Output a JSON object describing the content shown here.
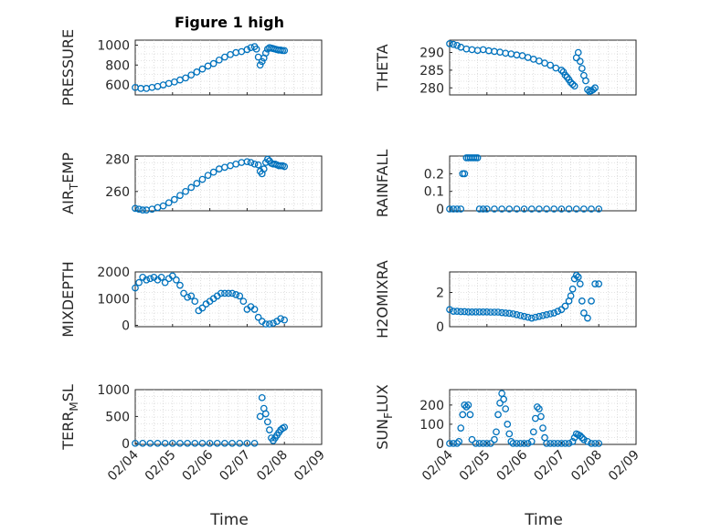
{
  "figure": {
    "title": "Figure 1 high"
  },
  "time_axis": {
    "xlabel": "Time",
    "tick_labels": [
      "02/04",
      "02/05",
      "02/06",
      "02/07",
      "02/08",
      "02/09"
    ]
  },
  "colors": {
    "marker": "#0072bd",
    "axes": "#262626",
    "grid": "#c8c8c8"
  },
  "chart_data": [
    {
      "type": "scatter",
      "ylabel": "PRESSURE",
      "ylabel_sub": "",
      "ylabel_after": "",
      "ylim": [
        500,
        1050
      ],
      "yticks": [
        600,
        800,
        1000
      ],
      "xlim": [
        0,
        5
      ],
      "grid": true,
      "series": [
        {
          "x": [
            0.0,
            0.15,
            0.3,
            0.45,
            0.6,
            0.75,
            0.9,
            1.05,
            1.2,
            1.35,
            1.5,
            1.65,
            1.8,
            1.95,
            2.1,
            2.25,
            2.4,
            2.55,
            2.7,
            2.85,
            3.0,
            3.1,
            3.2,
            3.25,
            3.3,
            3.35,
            3.4,
            3.45,
            3.5,
            3.55,
            3.6,
            3.65,
            3.7,
            3.75,
            3.8,
            3.85,
            3.9,
            3.95,
            4.0
          ],
          "y": [
            575,
            565,
            565,
            575,
            585,
            600,
            615,
            630,
            650,
            670,
            700,
            730,
            760,
            790,
            815,
            850,
            880,
            905,
            925,
            935,
            955,
            975,
            985,
            960,
            880,
            800,
            835,
            870,
            920,
            960,
            975,
            970,
            965,
            960,
            955,
            950,
            950,
            945,
            945
          ]
        }
      ]
    },
    {
      "type": "scatter",
      "ylabel": "THETA",
      "ylabel_sub": "",
      "ylabel_after": "",
      "ylim": [
        278,
        293.5
      ],
      "yticks": [
        280,
        285,
        290
      ],
      "xlim": [
        0,
        5
      ],
      "grid": true,
      "series": [
        {
          "x": [
            0.0,
            0.1,
            0.2,
            0.3,
            0.45,
            0.6,
            0.75,
            0.9,
            1.05,
            1.2,
            1.35,
            1.5,
            1.65,
            1.8,
            1.95,
            2.1,
            2.25,
            2.4,
            2.55,
            2.7,
            2.85,
            3.0,
            3.05,
            3.1,
            3.15,
            3.2,
            3.25,
            3.3,
            3.35,
            3.4,
            3.45,
            3.5,
            3.55,
            3.6,
            3.65,
            3.7,
            3.75,
            3.8,
            3.85,
            3.9
          ],
          "y": [
            292.5,
            292.3,
            292,
            291.5,
            291,
            290.8,
            290.6,
            290.8,
            290.5,
            290.3,
            290.1,
            289.8,
            289.6,
            289.3,
            289.1,
            288.6,
            288.1,
            287.6,
            287,
            286.4,
            285.6,
            285,
            284.5,
            283.6,
            283,
            282.3,
            281.5,
            281,
            280.5,
            288.5,
            290,
            287.5,
            285.5,
            283.5,
            282,
            279.5,
            279,
            279.2,
            279.5,
            280
          ]
        }
      ]
    },
    {
      "type": "scatter",
      "ylabel": "AIR",
      "ylabel_sub": "T",
      "ylabel_after": "EMP",
      "ylim": [
        248,
        282
      ],
      "yticks": [
        260,
        280
      ],
      "xlim": [
        0,
        5
      ],
      "grid": true,
      "series": [
        {
          "x": [
            0.0,
            0.1,
            0.2,
            0.3,
            0.45,
            0.6,
            0.75,
            0.9,
            1.05,
            1.2,
            1.35,
            1.5,
            1.65,
            1.8,
            1.95,
            2.1,
            2.25,
            2.4,
            2.55,
            2.7,
            2.85,
            3.0,
            3.1,
            3.2,
            3.3,
            3.35,
            3.4,
            3.45,
            3.5,
            3.55,
            3.6,
            3.65,
            3.7,
            3.75,
            3.8,
            3.85,
            3.9,
            3.95,
            4.0
          ],
          "y": [
            249.5,
            249,
            248.5,
            248.5,
            249,
            250,
            251,
            253,
            255,
            257.5,
            260,
            262.5,
            265,
            267.5,
            270,
            272,
            274,
            275,
            276,
            277,
            278,
            278.5,
            278,
            277,
            276.5,
            272.5,
            271,
            274,
            278,
            280,
            279,
            277.5,
            277,
            277,
            276.5,
            276,
            276,
            276,
            275.5
          ]
        }
      ]
    },
    {
      "type": "scatter",
      "ylabel": "RAINFALL",
      "ylabel_sub": "",
      "ylabel_after": "",
      "ylim": [
        -0.01,
        0.3
      ],
      "yticks": [
        0,
        0.1,
        0.2
      ],
      "xlim": [
        0,
        5
      ],
      "grid": true,
      "series": [
        {
          "x": [
            0.0,
            0.1,
            0.2,
            0.3,
            0.35,
            0.4,
            0.45,
            0.5,
            0.55,
            0.6,
            0.65,
            0.7,
            0.75,
            0.8,
            0.9,
            1.0,
            1.2,
            1.4,
            1.6,
            1.8,
            2.0,
            2.2,
            2.4,
            2.6,
            2.8,
            3.0,
            3.2,
            3.4,
            3.6,
            3.8,
            4.0
          ],
          "y": [
            0,
            0,
            0,
            0,
            0.2,
            0.2,
            0.29,
            0.29,
            0.29,
            0.29,
            0.29,
            0.29,
            0.29,
            0,
            0,
            0,
            0,
            0,
            0,
            0,
            0,
            0,
            0,
            0,
            0,
            0,
            0,
            0,
            0,
            0,
            0
          ]
        }
      ]
    },
    {
      "type": "scatter",
      "ylabel": "MIXDEPTH",
      "ylabel_sub": "",
      "ylabel_after": "",
      "ylim": [
        -50,
        2000
      ],
      "yticks": [
        0,
        1000,
        2000
      ],
      "xlim": [
        0,
        5
      ],
      "grid": true,
      "series": [
        {
          "x": [
            0.0,
            0.1,
            0.2,
            0.3,
            0.4,
            0.5,
            0.6,
            0.7,
            0.8,
            0.9,
            1.0,
            1.1,
            1.2,
            1.3,
            1.4,
            1.5,
            1.6,
            1.7,
            1.8,
            1.9,
            2.0,
            2.1,
            2.2,
            2.3,
            2.4,
            2.5,
            2.6,
            2.7,
            2.8,
            2.9,
            3.0,
            3.1,
            3.2,
            3.3,
            3.4,
            3.5,
            3.6,
            3.7,
            3.8,
            3.9,
            4.0
          ],
          "y": [
            1400,
            1600,
            1800,
            1700,
            1750,
            1800,
            1700,
            1800,
            1600,
            1750,
            1850,
            1700,
            1500,
            1200,
            1050,
            1100,
            900,
            550,
            650,
            800,
            900,
            1000,
            1100,
            1200,
            1200,
            1200,
            1200,
            1150,
            1100,
            900,
            600,
            700,
            600,
            300,
            150,
            50,
            50,
            80,
            150,
            250,
            200
          ]
        }
      ]
    },
    {
      "type": "scatter",
      "ylabel": "H2OMIXRA",
      "ylabel_sub": "",
      "ylabel_after": "",
      "ylim": [
        0,
        3.2
      ],
      "yticks": [
        0,
        2
      ],
      "xlim": [
        0,
        5
      ],
      "grid": true,
      "series": [
        {
          "x": [
            0.0,
            0.1,
            0.2,
            0.3,
            0.4,
            0.5,
            0.6,
            0.7,
            0.8,
            0.9,
            1.0,
            1.1,
            1.2,
            1.3,
            1.4,
            1.5,
            1.6,
            1.7,
            1.8,
            1.9,
            2.0,
            2.1,
            2.2,
            2.3,
            2.4,
            2.5,
            2.6,
            2.7,
            2.8,
            2.9,
            3.0,
            3.1,
            3.2,
            3.25,
            3.3,
            3.35,
            3.4,
            3.45,
            3.5,
            3.55,
            3.6,
            3.7,
            3.8,
            3.9,
            4.0
          ],
          "y": [
            1.0,
            0.9,
            0.9,
            0.88,
            0.88,
            0.86,
            0.86,
            0.86,
            0.86,
            0.86,
            0.86,
            0.85,
            0.85,
            0.85,
            0.82,
            0.8,
            0.78,
            0.75,
            0.7,
            0.65,
            0.6,
            0.55,
            0.5,
            0.55,
            0.6,
            0.65,
            0.7,
            0.75,
            0.8,
            0.9,
            1.0,
            1.2,
            1.5,
            1.8,
            2.2,
            2.8,
            3.0,
            2.9,
            2.5,
            1.5,
            0.8,
            0.5,
            1.5,
            2.5,
            2.5
          ]
        }
      ]
    },
    {
      "type": "scatter",
      "ylabel": "TERR",
      "ylabel_sub": "M",
      "ylabel_after": "SL",
      "ylim": [
        -20,
        1000
      ],
      "yticks": [
        0,
        500,
        1000
      ],
      "xlim": [
        0,
        5
      ],
      "grid": true,
      "series": [
        {
          "x": [
            0.0,
            0.2,
            0.4,
            0.6,
            0.8,
            1.0,
            1.2,
            1.4,
            1.6,
            1.8,
            2.0,
            2.2,
            2.4,
            2.6,
            2.8,
            3.0,
            3.2,
            3.35,
            3.4,
            3.45,
            3.5,
            3.55,
            3.6,
            3.65,
            3.7,
            3.75,
            3.8,
            3.85,
            3.9,
            3.95,
            4.0
          ],
          "y": [
            0,
            0,
            0,
            0,
            0,
            0,
            0,
            0,
            0,
            0,
            0,
            0,
            0,
            0,
            0,
            0,
            0,
            500,
            850,
            650,
            550,
            400,
            250,
            100,
            50,
            100,
            150,
            200,
            250,
            280,
            300
          ]
        }
      ]
    },
    {
      "type": "scatter",
      "ylabel": "SUN",
      "ylabel_sub": "F",
      "ylabel_after": "LUX",
      "ylim": [
        -5,
        280
      ],
      "yticks": [
        0,
        100,
        200
      ],
      "xlim": [
        0,
        5
      ],
      "grid": true,
      "series": [
        {
          "x": [
            0.0,
            0.1,
            0.2,
            0.25,
            0.3,
            0.35,
            0.4,
            0.45,
            0.5,
            0.55,
            0.6,
            0.7,
            0.8,
            0.9,
            1.0,
            1.1,
            1.2,
            1.25,
            1.3,
            1.35,
            1.4,
            1.45,
            1.5,
            1.55,
            1.6,
            1.65,
            1.7,
            1.8,
            1.9,
            2.0,
            2.1,
            2.2,
            2.25,
            2.3,
            2.35,
            2.4,
            2.45,
            2.5,
            2.55,
            2.6,
            2.7,
            2.8,
            2.9,
            3.0,
            3.1,
            3.2,
            3.3,
            3.35,
            3.4,
            3.45,
            3.5,
            3.55,
            3.6,
            3.7,
            3.8,
            3.9,
            4.0
          ],
          "y": [
            0,
            0,
            0,
            10,
            80,
            150,
            200,
            190,
            200,
            150,
            20,
            0,
            0,
            0,
            0,
            0,
            20,
            60,
            150,
            210,
            260,
            230,
            180,
            100,
            50,
            10,
            0,
            0,
            0,
            0,
            0,
            10,
            60,
            130,
            190,
            180,
            140,
            80,
            30,
            0,
            0,
            0,
            0,
            0,
            0,
            0,
            10,
            30,
            50,
            45,
            40,
            30,
            20,
            10,
            0,
            0,
            0
          ]
        }
      ]
    }
  ]
}
